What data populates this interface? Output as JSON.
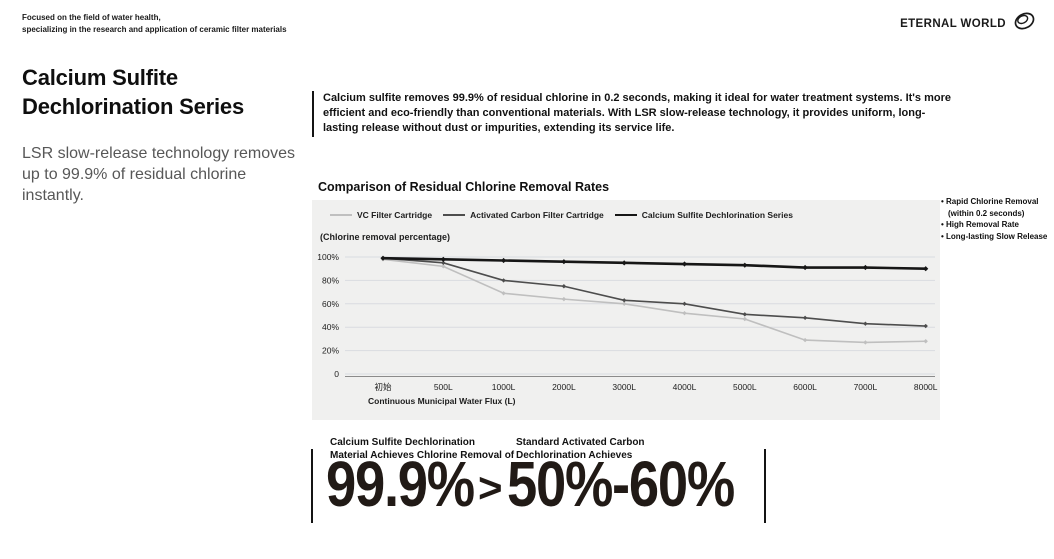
{
  "header": {
    "tagline_line1": "Focused on the field of water health,",
    "tagline_line2": "specializing in the research and application of ceramic filter materials",
    "brand": "ETERNAL WORLD",
    "logo_icon": "ring-logo"
  },
  "intro": {
    "title_line1": "Calcium Sulfite",
    "title_line2": "Dechlorination Series",
    "subtitle": "LSR slow-release technology removes up to 99.9% of residual chlorine instantly.",
    "description": "Calcium sulfite removes 99.9% of residual chlorine in 0.2 seconds, making it ideal for water treatment systems. It's more efficient and eco-friendly than conventional materials. With LSR slow-release technology, it provides uniform, long-lasting release without dust or impurities, extending its service life."
  },
  "chart_data": {
    "type": "line",
    "title": "Comparison of Residual Chlorine Removal Rates",
    "ylabel": "(Chlorine removal percentage)",
    "xlabel": "Continuous Municipal Water Flux (L)",
    "categories": [
      "初始",
      "500L",
      "1000L",
      "2000L",
      "3000L",
      "4000L",
      "5000L",
      "6000L",
      "7000L",
      "8000L"
    ],
    "ylim": [
      0,
      100
    ],
    "yticks": [
      "100%",
      "80%",
      "60%",
      "40%",
      "20%",
      "0"
    ],
    "grid": true,
    "legend_position": "top-left",
    "panel_bg": "#f0f0ef",
    "gridline_color": "#d9dbe0",
    "series": [
      {
        "name": "VC Filter Cartridge",
        "color": "#bfbfbf",
        "line_width": 1.6,
        "values": [
          98,
          92,
          69,
          64,
          60,
          52,
          47,
          29,
          27,
          28
        ]
      },
      {
        "name": "Activated Carbon Filter Cartridge",
        "color": "#4d4d4d",
        "line_width": 1.6,
        "values": [
          99,
          95,
          80,
          75,
          63,
          60,
          51,
          48,
          43,
          41
        ]
      },
      {
        "name": "Calcium Sulfite Dechlorination Series",
        "color": "#161616",
        "line_width": 2.6,
        "values": [
          99,
          98,
          97,
          96,
          95,
          94,
          93,
          91,
          91,
          90
        ]
      }
    ]
  },
  "highlights": {
    "items": [
      [
        "Rapid Chlorine Removal",
        "(within 0.2 seconds)"
      ],
      [
        "High Removal Rate"
      ],
      [
        "Long-lasting Slow Release"
      ]
    ]
  },
  "comparison": {
    "left_label_line1": "Calcium Sulfite Dechlorination",
    "left_label_line2": "Material Achieves Chlorine Removal of",
    "left_value": "99.9%",
    "operator": ">",
    "right_label_line1": "Standard Activated Carbon",
    "right_label_line2": "Dechlorination Achieves",
    "right_value": "50%-60%"
  }
}
